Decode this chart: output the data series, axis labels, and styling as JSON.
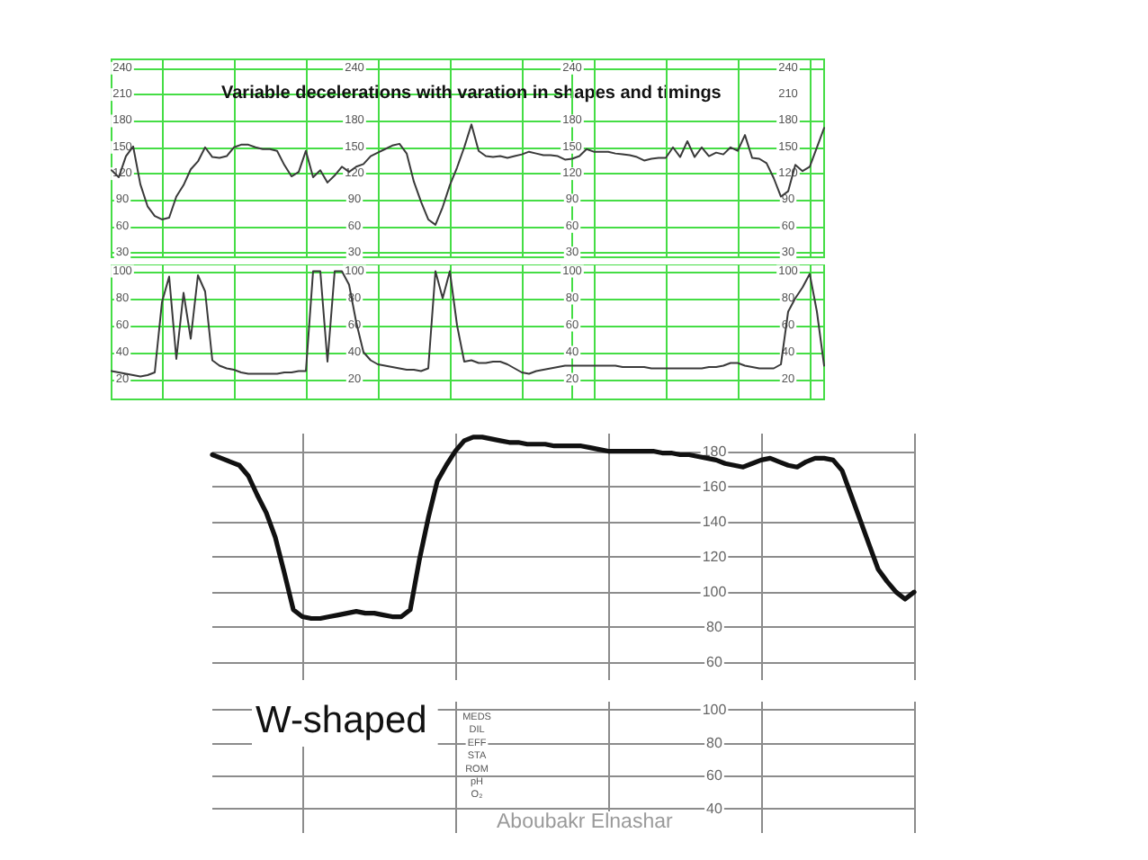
{
  "chart_data": [
    {
      "type": "line",
      "title": "Variable decelerations with varation in shapes and timings",
      "categories": [
        null,
        null,
        null,
        null,
        null,
        null,
        null,
        null,
        null,
        null,
        null,
        null,
        null,
        null,
        null,
        null,
        null,
        null,
        null,
        null,
        null,
        null,
        null,
        null,
        null,
        null,
        null,
        null,
        null,
        null,
        null,
        null,
        null,
        null,
        null,
        null,
        null,
        null,
        null,
        null,
        null,
        null,
        null,
        null,
        null,
        null,
        null,
        null,
        null,
        null,
        null,
        null,
        null,
        null,
        null,
        null,
        null,
        null,
        null,
        null,
        null,
        null,
        null,
        null,
        null
      ],
      "values": [
        124,
        116,
        140,
        151,
        108,
        83,
        72,
        68,
        70,
        94,
        107,
        125,
        134,
        150,
        139,
        138,
        140,
        150,
        153,
        153,
        150,
        148,
        148,
        146,
        130,
        117,
        122,
        146,
        116,
        124,
        110,
        118,
        128,
        122,
        128,
        131,
        140,
        144,
        148,
        152,
        154,
        143,
        111,
        88,
        68,
        62,
        82,
        107,
        127,
        150,
        176,
        146,
        140,
        139,
        140,
        138,
        140,
        142,
        145,
        143,
        141,
        141,
        140,
        136,
        137
      ],
      "color": "#3a3a3a",
      "ylim": [
        25,
        250
      ],
      "yticks": [
        30,
        60,
        90,
        120,
        150,
        180,
        210,
        240
      ],
      "y2lim": [
        25,
        250
      ],
      "y2ticks": [
        30,
        60,
        90,
        120,
        150,
        180,
        240
      ],
      "grid": true,
      "tick_labels": "y",
      "marker": "none"
    },
    {
      "type": "line",
      "categories": [
        null,
        null,
        null,
        null,
        null,
        null,
        null,
        null,
        null,
        null,
        null,
        null,
        null,
        null,
        null,
        null,
        null,
        null,
        null,
        null,
        null,
        null,
        null,
        null,
        null,
        null,
        null,
        null,
        null,
        null,
        null,
        null,
        null,
        null,
        null,
        null
      ],
      "values": [
        137,
        140,
        148,
        145,
        145,
        145,
        143,
        142,
        141,
        139,
        135,
        137,
        138,
        138,
        150,
        139,
        157,
        139,
        150,
        140,
        144,
        142,
        150,
        146,
        164,
        138,
        137,
        132,
        115,
        94,
        100,
        130,
        123,
        128,
        150,
        172
      ],
      "color": "#3a3a3a",
      "ylim": [
        25,
        250
      ],
      "yticks": [
        30,
        60,
        90,
        120,
        150,
        180,
        240
      ],
      "y2lim": [
        25,
        250
      ],
      "y2ticks": [
        30,
        60,
        90,
        120,
        150,
        180,
        210,
        240
      ],
      "grid": true,
      "tick_labels": "y",
      "marker": "none"
    },
    {
      "type": "line",
      "categories": [
        null,
        null,
        null,
        null,
        null,
        null,
        null,
        null,
        null,
        null,
        null,
        null,
        null,
        null,
        null,
        null,
        null,
        null,
        null,
        null,
        null,
        null,
        null,
        null,
        null,
        null,
        null,
        null,
        null,
        null,
        null,
        null,
        null,
        null,
        null,
        null,
        null,
        null,
        null,
        null,
        null,
        null,
        null,
        null,
        null,
        null,
        null,
        null,
        null,
        null,
        null,
        null,
        null,
        null,
        null,
        null,
        null,
        null,
        null,
        null,
        null,
        null,
        null,
        null,
        null
      ],
      "values": [
        26,
        25,
        24,
        23,
        22,
        23,
        25,
        77,
        96,
        35,
        84,
        50,
        97,
        85,
        34,
        30,
        28,
        27,
        25,
        24,
        24,
        24,
        24,
        24,
        25,
        25,
        26,
        26,
        100,
        100,
        33,
        100,
        100,
        90,
        62,
        40,
        34,
        31,
        30,
        29,
        28,
        27,
        27,
        26,
        28,
        100,
        80,
        100,
        60,
        33,
        34,
        32,
        32,
        33,
        33,
        31,
        28,
        25,
        24,
        26,
        27,
        28,
        29,
        30,
        30
      ],
      "color": "#3a3a3a",
      "ylim": [
        5,
        105
      ],
      "yticks": [
        20,
        40,
        60,
        80,
        100
      ],
      "y2lim": [
        5,
        105
      ],
      "y2ticks": [
        20,
        40,
        60,
        80,
        100
      ],
      "grid": true,
      "tick_labels": "y",
      "marker": "none"
    },
    {
      "type": "line",
      "categories": [
        null,
        null,
        null,
        null,
        null,
        null,
        null,
        null,
        null,
        null,
        null,
        null,
        null,
        null,
        null,
        null,
        null,
        null,
        null,
        null,
        null,
        null,
        null,
        null,
        null,
        null,
        null,
        null,
        null,
        null,
        null,
        null,
        null,
        null,
        null,
        null
      ],
      "values": [
        30,
        30,
        30,
        30,
        30,
        30,
        30,
        29,
        29,
        29,
        29,
        28,
        28,
        28,
        28,
        28,
        28,
        28,
        28,
        29,
        29,
        30,
        32,
        32,
        30,
        29,
        28,
        28,
        28,
        31,
        70,
        80,
        88,
        98,
        70,
        30
      ],
      "color": "#3a3a3a",
      "ylim": [
        5,
        105
      ],
      "yticks": [
        20,
        40,
        60,
        80,
        100
      ],
      "y2lim": [
        5,
        105
      ],
      "y2ticks": [
        20,
        40,
        60,
        80,
        100
      ],
      "grid": true,
      "tick_labels": "y",
      "marker": "none"
    },
    {
      "type": "line",
      "categories": [
        null,
        null,
        null,
        null,
        null,
        null,
        null,
        null,
        null,
        null,
        null,
        null,
        null,
        null,
        null,
        null,
        null,
        null,
        null,
        null,
        null,
        null,
        null,
        null,
        null,
        null,
        null,
        null,
        null,
        null,
        null,
        null,
        null,
        null,
        null,
        null,
        null,
        null,
        null,
        null,
        null,
        null,
        null,
        null,
        null,
        null,
        null,
        null,
        null,
        null,
        null,
        null,
        null,
        null,
        null,
        null,
        null,
        null,
        null,
        null,
        null,
        null,
        null,
        null,
        null,
        null,
        null,
        null,
        null,
        null,
        null,
        null,
        null,
        null,
        null,
        null,
        null,
        null,
        null
      ],
      "values": [
        178,
        176,
        174,
        172,
        166,
        155,
        145,
        131,
        111,
        90,
        86,
        85,
        85,
        86,
        87,
        88,
        89,
        88,
        88,
        87,
        86,
        86,
        90,
        118,
        142,
        163,
        172,
        180,
        186,
        188,
        188,
        187,
        186,
        185,
        185,
        184,
        184,
        184,
        183,
        183,
        183,
        183,
        182,
        181,
        180,
        180,
        180,
        180,
        180,
        180,
        179,
        179,
        178,
        178,
        177,
        176,
        175,
        173,
        172,
        171,
        173,
        175,
        176,
        174,
        172,
        171,
        174,
        176,
        176,
        175,
        169,
        155,
        141,
        127,
        113,
        106,
        100,
        96,
        100
      ],
      "color": "#111111",
      "ylim": [
        50,
        190
      ],
      "yticks": [
        60,
        80,
        100,
        120,
        140,
        160,
        180
      ],
      "grid": true,
      "tick_labels": "y",
      "marker": "none"
    },
    {
      "type": "line",
      "categories": [
        null,
        null,
        null,
        null,
        null,
        null,
        null,
        null,
        null,
        null,
        null,
        null,
        null,
        null,
        null,
        null,
        null,
        null,
        null,
        null,
        null,
        null,
        null,
        null,
        null,
        null,
        null,
        null,
        null,
        null,
        null,
        null,
        null,
        null,
        null,
        null,
        null,
        null,
        null,
        null,
        null,
        null,
        null,
        null,
        null,
        null,
        null,
        null,
        null,
        null,
        null,
        null,
        null,
        null,
        null,
        null,
        null,
        null,
        null,
        null,
        null,
        null,
        null,
        null,
        null,
        null,
        null,
        null,
        null,
        null,
        null,
        null,
        null,
        null,
        null,
        null,
        null,
        null,
        null
      ],
      "ylim": [
        25,
        105
      ],
      "yticks": [
        40,
        60,
        80,
        100
      ],
      "grid": true,
      "tick_labels": "y",
      "annotations": [
        "W-shaped",
        "MEDS",
        "DIL",
        "EFF",
        "STA",
        "ROM",
        "pH",
        "O₂",
        "Aboubakr Elnashar"
      ]
    }
  ]
}
